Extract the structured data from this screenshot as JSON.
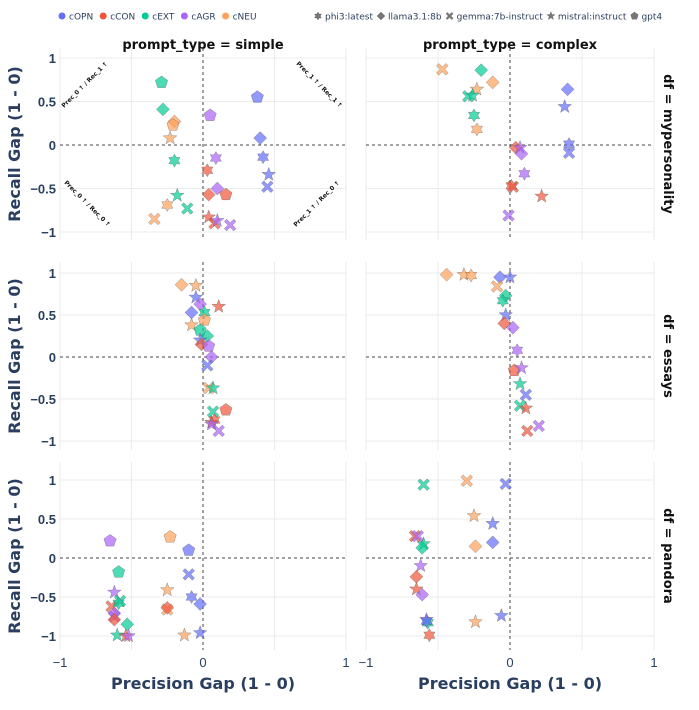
{
  "chart_data": {
    "type": "scatter",
    "facet_col_label": "prompt_type",
    "facet_row_label": "df",
    "columns": [
      "simple",
      "complex"
    ],
    "rows": [
      "mypersonality",
      "essays",
      "pandora"
    ],
    "col_titles": [
      "prompt_type = simple",
      "prompt_type = complex"
    ],
    "row_titles": [
      "df = mypersonality",
      "df = essays",
      "df = pandora"
    ],
    "xlabel": "Precision Gap (1 - 0)",
    "ylabel": "Recall Gap (1 - 0)",
    "xlim": [
      -1,
      1
    ],
    "x_ticks": [
      "−1",
      "0",
      "1"
    ],
    "y_ticks": [
      "1",
      "0.5",
      "0",
      "−0.5",
      "−1"
    ],
    "grid": true,
    "zero_lines": "dashed",
    "legend_placement": "top",
    "color_legend": [
      {
        "name": "cOPN",
        "color": "#636efa"
      },
      {
        "name": "cCON",
        "color": "#EF553B"
      },
      {
        "name": "cEXT",
        "color": "#00cc96"
      },
      {
        "name": "cAGR",
        "color": "#ab63fa"
      },
      {
        "name": "cNEU",
        "color": "#FFA15A"
      }
    ],
    "symbol_legend": [
      {
        "name": "phi3:latest",
        "symbol": "hexagram"
      },
      {
        "name": "llama3.1:8b",
        "symbol": "diamond"
      },
      {
        "name": "gemma:7b-instruct",
        "symbol": "x"
      },
      {
        "name": "mistral:instruct",
        "symbol": "star"
      },
      {
        "name": "gpt4",
        "symbol": "pentagon"
      }
    ],
    "quadrant_annotations": [
      "Prec_0 ↑ / Rec_1 ↑",
      "Prec_1 ↑ / Rec_1 ↑",
      "Prec_0 ↑ / Rec_0 ↑",
      "Prec_1 ↑ / Rec_0 ↑"
    ],
    "point_fields": [
      "precision_gap",
      "recall_gap",
      "trait",
      "model"
    ],
    "panels": [
      {
        "row": "mypersonality",
        "col": "simple",
        "points": [
          [
            -0.29,
            0.72,
            "cEXT",
            "gpt4"
          ],
          [
            -0.28,
            0.41,
            "cEXT",
            "llama3.1:8b"
          ],
          [
            -0.2,
            0.27,
            "cNEU",
            "llama3.1:8b"
          ],
          [
            -0.21,
            0.23,
            "cNEU",
            "gpt4"
          ],
          [
            -0.23,
            0.08,
            "cNEU",
            "mistral:instruct"
          ],
          [
            -0.2,
            -0.18,
            "cEXT",
            "phi3:latest"
          ],
          [
            -0.18,
            -0.58,
            "cEXT",
            "mistral:instruct"
          ],
          [
            -0.25,
            -0.69,
            "cNEU",
            "phi3:latest"
          ],
          [
            -0.11,
            -0.73,
            "cEXT",
            "gemma:7b-instruct"
          ],
          [
            -0.34,
            -0.85,
            "cNEU",
            "gemma:7b-instruct"
          ],
          [
            0.05,
            0.34,
            "cAGR",
            "gpt4"
          ],
          [
            0.38,
            0.55,
            "cOPN",
            "gpt4"
          ],
          [
            0.4,
            0.08,
            "cOPN",
            "llama3.1:8b"
          ],
          [
            0.09,
            -0.15,
            "cAGR",
            "phi3:latest"
          ],
          [
            0.42,
            -0.14,
            "cOPN",
            "phi3:latest"
          ],
          [
            0.03,
            -0.29,
            "cCON",
            "phi3:latest"
          ],
          [
            0.46,
            -0.34,
            "cOPN",
            "mistral:instruct"
          ],
          [
            0.45,
            -0.48,
            "cOPN",
            "gemma:7b-instruct"
          ],
          [
            0.1,
            -0.5,
            "cAGR",
            "llama3.1:8b"
          ],
          [
            0.04,
            -0.57,
            "cCON",
            "llama3.1:8b"
          ],
          [
            0.16,
            -0.57,
            "cCON",
            "gpt4"
          ],
          [
            0.04,
            -0.83,
            "cCON",
            "mistral:instruct"
          ],
          [
            0.08,
            -0.9,
            "cCON",
            "gemma:7b-instruct"
          ],
          [
            0.1,
            -0.87,
            "cAGR",
            "mistral:instruct"
          ],
          [
            0.19,
            -0.92,
            "cAGR",
            "gemma:7b-instruct"
          ]
        ]
      },
      {
        "row": "mypersonality",
        "col": "complex",
        "points": [
          [
            -0.47,
            0.87,
            "cNEU",
            "gemma:7b-instruct"
          ],
          [
            -0.2,
            0.86,
            "cEXT",
            "llama3.1:8b"
          ],
          [
            -0.12,
            0.72,
            "cNEU",
            "llama3.1:8b"
          ],
          [
            -0.23,
            0.64,
            "cNEU",
            "mistral:instruct"
          ],
          [
            -0.29,
            0.56,
            "cEXT",
            "gemma:7b-instruct"
          ],
          [
            -0.26,
            0.57,
            "cEXT",
            "mistral:instruct"
          ],
          [
            -0.25,
            0.34,
            "cEXT",
            "phi3:latest"
          ],
          [
            -0.23,
            0.18,
            "cNEU",
            "phi3:latest"
          ],
          [
            0.4,
            0.64,
            "cOPN",
            "llama3.1:8b"
          ],
          [
            0.38,
            0.44,
            "cOPN",
            "mistral:instruct"
          ],
          [
            0.41,
            0.01,
            "cOPN",
            "phi3:latest"
          ],
          [
            0.41,
            -0.09,
            "cOPN",
            "gemma:7b-instruct"
          ],
          [
            0.04,
            -0.03,
            "cCON",
            "llama3.1:8b"
          ],
          [
            0.07,
            -0.03,
            "cAGR",
            "mistral:instruct"
          ],
          [
            0.08,
            -0.1,
            "cAGR",
            "llama3.1:8b"
          ],
          [
            0.1,
            -0.33,
            "cAGR",
            "phi3:latest"
          ],
          [
            0.02,
            -0.48,
            "cCON",
            "gemma:7b-instruct"
          ],
          [
            0.01,
            -0.47,
            "cCON",
            "phi3:latest"
          ],
          [
            0.22,
            -0.59,
            "cCON",
            "mistral:instruct"
          ],
          [
            -0.01,
            -0.81,
            "cAGR",
            "gemma:7b-instruct"
          ]
        ]
      },
      {
        "row": "essays",
        "col": "simple",
        "points": [
          [
            -0.15,
            0.86,
            "cNEU",
            "llama3.1:8b"
          ],
          [
            -0.05,
            0.85,
            "cNEU",
            "mistral:instruct"
          ],
          [
            -0.05,
            0.71,
            "cOPN",
            "mistral:instruct"
          ],
          [
            -0.02,
            0.63,
            "cAGR",
            "llama3.1:8b"
          ],
          [
            0.11,
            0.6,
            "cCON",
            "mistral:instruct"
          ],
          [
            -0.08,
            0.53,
            "cOPN",
            "llama3.1:8b"
          ],
          [
            0.01,
            0.53,
            "cEXT",
            "phi3:latest"
          ],
          [
            0.01,
            0.44,
            "cNEU",
            "gpt4"
          ],
          [
            -0.08,
            0.38,
            "cNEU",
            "mistral:instruct"
          ],
          [
            -0.02,
            0.32,
            "cEXT",
            "gpt4"
          ],
          [
            0.03,
            0.25,
            "cEXT",
            "llama3.1:8b"
          ],
          [
            -0.02,
            0.2,
            "cOPN",
            "mistral:instruct"
          ],
          [
            -0.01,
            0.15,
            "cCON",
            "llama3.1:8b"
          ],
          [
            0.04,
            0.13,
            "cAGR",
            "gpt4"
          ],
          [
            0.06,
            0.0,
            "cAGR",
            "llama3.1:8b"
          ],
          [
            0.03,
            -0.1,
            "cOPN",
            "gemma:7b-instruct"
          ],
          [
            0.04,
            -0.37,
            "cNEU",
            "gemma:7b-instruct"
          ],
          [
            0.07,
            -0.37,
            "cEXT",
            "mistral:instruct"
          ],
          [
            0.16,
            -0.63,
            "cCON",
            "gpt4"
          ],
          [
            0.07,
            -0.65,
            "cEXT",
            "gemma:7b-instruct"
          ],
          [
            0.06,
            -0.78,
            "cCON",
            "mistral:instruct"
          ],
          [
            0.08,
            -0.75,
            "cCON",
            "phi3:latest"
          ],
          [
            0.06,
            -0.8,
            "cAGR",
            "mistral:instruct"
          ],
          [
            0.11,
            -0.88,
            "cAGR",
            "gemma:7b-instruct"
          ]
        ]
      },
      {
        "row": "essays",
        "col": "complex",
        "points": [
          [
            -0.44,
            0.98,
            "cNEU",
            "llama3.1:8b"
          ],
          [
            -0.32,
            0.98,
            "cNEU",
            "mistral:instruct"
          ],
          [
            -0.27,
            0.97,
            "cNEU",
            "phi3:latest"
          ],
          [
            -0.07,
            0.95,
            "cOPN",
            "llama3.1:8b"
          ],
          [
            0.0,
            0.95,
            "cOPN",
            "mistral:instruct"
          ],
          [
            -0.09,
            0.84,
            "cNEU",
            "gemma:7b-instruct"
          ],
          [
            -0.03,
            0.73,
            "cEXT",
            "llama3.1:8b"
          ],
          [
            -0.05,
            0.67,
            "cEXT",
            "phi3:latest"
          ],
          [
            -0.03,
            0.5,
            "cOPN",
            "mistral:instruct"
          ],
          [
            -0.04,
            0.4,
            "cCON",
            "llama3.1:8b"
          ],
          [
            0.02,
            0.35,
            "cAGR",
            "llama3.1:8b"
          ],
          [
            0.05,
            0.08,
            "cAGR",
            "phi3:latest"
          ],
          [
            0.03,
            -0.16,
            "cCON",
            "gpt4"
          ],
          [
            0.08,
            -0.13,
            "cAGR",
            "mistral:instruct"
          ],
          [
            0.07,
            -0.32,
            "cEXT",
            "mistral:instruct"
          ],
          [
            0.11,
            -0.45,
            "cOPN",
            "gemma:7b-instruct"
          ],
          [
            0.07,
            -0.58,
            "cEXT",
            "gemma:7b-instruct"
          ],
          [
            0.11,
            -0.61,
            "cCON",
            "mistral:instruct"
          ],
          [
            0.12,
            -0.88,
            "cCON",
            "gemma:7b-instruct"
          ],
          [
            0.2,
            -0.82,
            "cAGR",
            "gemma:7b-instruct"
          ]
        ]
      },
      {
        "row": "pandora",
        "col": "simple",
        "points": [
          [
            -0.65,
            0.22,
            "cAGR",
            "gpt4"
          ],
          [
            -0.23,
            0.27,
            "cNEU",
            "gpt4"
          ],
          [
            -0.1,
            0.1,
            "cOPN",
            "gpt4"
          ],
          [
            -0.59,
            -0.18,
            "cEXT",
            "gpt4"
          ],
          [
            -0.1,
            -0.21,
            "cOPN",
            "gemma:7b-instruct"
          ],
          [
            -0.25,
            -0.41,
            "cNEU",
            "mistral:instruct"
          ],
          [
            -0.62,
            -0.44,
            "cAGR",
            "mistral:instruct"
          ],
          [
            -0.58,
            -0.55,
            "cEXT",
            "gemma:7b-instruct"
          ],
          [
            -0.08,
            -0.5,
            "cOPN",
            "phi3:latest"
          ],
          [
            -0.02,
            -0.59,
            "cOPN",
            "llama3.1:8b"
          ],
          [
            -0.64,
            -0.62,
            "cCON",
            "gemma:7b-instruct"
          ],
          [
            -0.25,
            -0.66,
            "cNEU",
            "gemma:7b-instruct"
          ],
          [
            -0.25,
            -0.64,
            "cCON",
            "llama3.1:8b"
          ],
          [
            -0.59,
            -0.58,
            "cEXT",
            "phi3:latest"
          ],
          [
            -0.62,
            -0.71,
            "cAGR",
            "llama3.1:8b"
          ],
          [
            -0.62,
            -0.75,
            "cAGR",
            "gemma:7b-instruct"
          ],
          [
            -0.62,
            -0.79,
            "cCON",
            "llama3.1:8b"
          ],
          [
            -0.53,
            -0.85,
            "cEXT",
            "llama3.1:8b"
          ],
          [
            -0.6,
            -0.99,
            "cEXT",
            "mistral:instruct"
          ],
          [
            -0.54,
            -1.0,
            "cCON",
            "mistral:instruct"
          ],
          [
            -0.52,
            -1.0,
            "cAGR",
            "mistral:instruct"
          ],
          [
            -0.13,
            -0.99,
            "cNEU",
            "mistral:instruct"
          ],
          [
            -0.02,
            -0.96,
            "cOPN",
            "mistral:instruct"
          ]
        ]
      },
      {
        "row": "pandora",
        "col": "complex",
        "points": [
          [
            -0.6,
            0.94,
            "cEXT",
            "gemma:7b-instruct"
          ],
          [
            -0.3,
            0.99,
            "cNEU",
            "gemma:7b-instruct"
          ],
          [
            -0.03,
            0.95,
            "cOPN",
            "gemma:7b-instruct"
          ],
          [
            -0.25,
            0.54,
            "cNEU",
            "mistral:instruct"
          ],
          [
            -0.12,
            0.44,
            "cOPN",
            "mistral:instruct"
          ],
          [
            -0.66,
            0.28,
            "cCON",
            "gemma:7b-instruct"
          ],
          [
            -0.64,
            0.28,
            "cAGR",
            "gemma:7b-instruct"
          ],
          [
            -0.6,
            0.18,
            "cEXT",
            "mistral:instruct"
          ],
          [
            -0.61,
            0.13,
            "cEXT",
            "llama3.1:8b"
          ],
          [
            -0.24,
            0.15,
            "cNEU",
            "llama3.1:8b"
          ],
          [
            -0.12,
            0.2,
            "cOPN",
            "llama3.1:8b"
          ],
          [
            -0.62,
            -0.1,
            "cAGR",
            "mistral:instruct"
          ],
          [
            -0.65,
            -0.24,
            "cCON",
            "llama3.1:8b"
          ],
          [
            -0.65,
            -0.4,
            "cCON",
            "mistral:instruct"
          ],
          [
            -0.61,
            -0.47,
            "cAGR",
            "llama3.1:8b"
          ],
          [
            -0.06,
            -0.74,
            "cOPN",
            "mistral:instruct"
          ],
          [
            -0.24,
            -0.82,
            "cNEU",
            "mistral:instruct"
          ],
          [
            -0.58,
            -0.79,
            "cAGR",
            "mistral:instruct"
          ],
          [
            -0.57,
            -0.83,
            "cEXT",
            "phi3:latest"
          ],
          [
            -0.58,
            -0.81,
            "cOPN",
            "phi3:latest"
          ],
          [
            -0.56,
            -0.99,
            "cCON",
            "phi3:latest"
          ]
        ]
      }
    ]
  }
}
